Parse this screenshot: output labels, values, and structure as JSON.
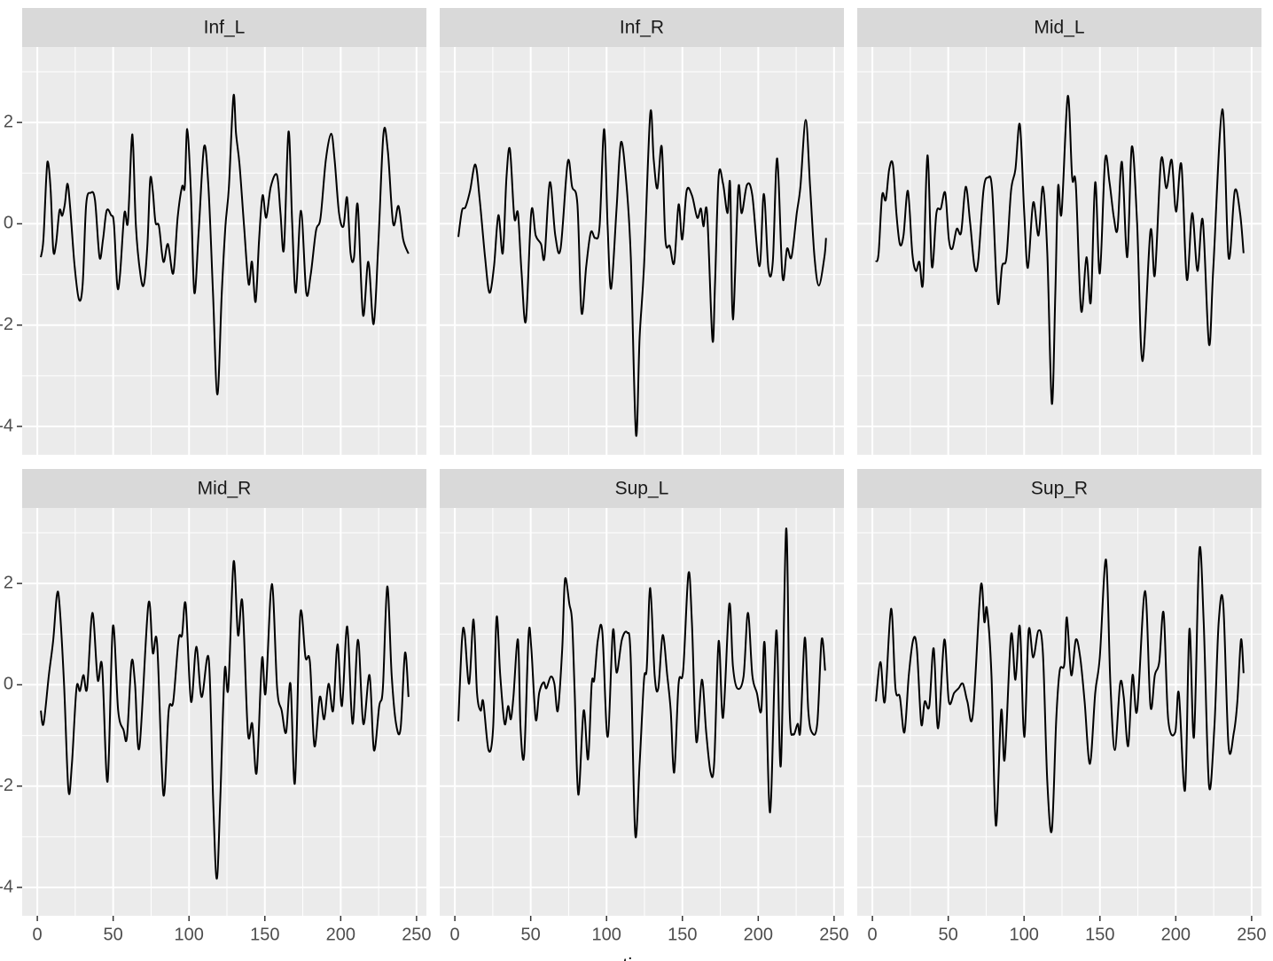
{
  "x_axis_title": "time",
  "chart_data": [
    {
      "type": "line",
      "title": "Inf_L",
      "color": "#000000",
      "grid": true,
      "xlim": [
        -10,
        256.5
      ],
      "ylim": [
        -4.56,
        3.49
      ],
      "xticks": [
        0,
        50,
        100,
        150,
        200,
        250
      ],
      "yticks": [
        -4,
        -2,
        0,
        2
      ],
      "x": [
        2.3,
        4,
        5.9,
        7,
        8.8,
        10.5,
        12.3,
        14.6,
        16.4,
        18.1,
        19.9,
        21.7,
        24.6,
        27.5,
        29.9,
        32.2,
        35.1,
        38,
        41,
        43.3,
        45.7,
        48.6,
        50.5,
        52.7,
        54.5,
        57.4,
        59.7,
        62.1,
        63.2,
        65,
        68,
        70.3,
        72.6,
        74.4,
        76.1,
        77.9,
        80.2,
        83.1,
        86.1,
        89.6,
        92.5,
        95.4,
        97.2,
        98.8,
        101.2,
        103.5,
        106.4,
        109.9,
        112.8,
        115.8,
        118.7,
        121.6,
        124,
        126.3,
        129.3,
        131,
        133.3,
        136.3,
        139.3,
        141.5,
        143.9,
        146.2,
        148.5,
        150.9,
        153.9,
        158,
        160.3,
        162.6,
        165.6,
        168,
        170.4,
        173.8,
        177.3,
        180.2,
        183.7,
        186.7,
        190.2,
        193.7,
        196,
        198.9,
        201.8,
        204.2,
        206.5,
        208.8,
        211.2,
        214.7,
        218.2,
        221.7,
        224.8,
        228.2,
        231.1,
        234.6,
        238.1,
        241.2,
        244.7
      ],
      "values": [
        -0.66,
        -0.31,
        0.91,
        1.22,
        0.65,
        -0.52,
        -0.4,
        0.26,
        0.16,
        0.38,
        0.79,
        0.3,
        -0.84,
        -1.5,
        -1.19,
        0.38,
        0.61,
        0.47,
        -0.66,
        -0.31,
        0.26,
        0.17,
        0,
        -1.22,
        -1.01,
        0.21,
        0.03,
        1.61,
        1.52,
        -0.05,
        -1.01,
        -1.19,
        -0.4,
        0.87,
        0.65,
        0.03,
        -0.05,
        -0.75,
        -0.4,
        -0.98,
        0.12,
        0.73,
        0.73,
        1.87,
        0.65,
        -1.36,
        -0.14,
        1.52,
        0.73,
        -1.36,
        -3.37,
        -1.36,
        -0.05,
        0.73,
        2.52,
        1.78,
        1.17,
        -0.05,
        -1.19,
        -0.75,
        -1.54,
        -0.31,
        0.56,
        0.12,
        0.73,
        0.96,
        0.21,
        -0.49,
        1.82,
        0.03,
        -1.36,
        0.26,
        -1.36,
        -1.01,
        -0.14,
        0.12,
        1.26,
        1.78,
        1.26,
        0.21,
        -0.05,
        0.52,
        -0.58,
        -0.66,
        0.38,
        -1.8,
        -0.75,
        -1.98,
        -0.4,
        1.78,
        1.43,
        0,
        0.35,
        -0.31,
        -0.59
      ]
    },
    {
      "type": "line",
      "title": "Inf_R",
      "color": "#000000",
      "grid": true,
      "xlim": [
        -10,
        256.5
      ],
      "ylim": [
        -4.56,
        3.49
      ],
      "xticks": [
        0,
        50,
        100,
        150,
        200,
        250
      ],
      "yticks": [
        -4,
        -2,
        0,
        2
      ],
      "x": [
        2.3,
        4.7,
        7,
        10,
        13.5,
        16.4,
        19.9,
        22.8,
        25.8,
        28.7,
        31.6,
        34,
        36.3,
        39.2,
        41.6,
        43.9,
        46.8,
        50.4,
        53.3,
        56.8,
        59.1,
        62.6,
        66.2,
        69.7,
        74.4,
        77.3,
        80.8,
        83.5,
        86.6,
        89.6,
        92.5,
        95.4,
        98.4,
        100.7,
        103,
        106.6,
        109.5,
        113,
        116,
        119.4,
        121.8,
        124.7,
        128.8,
        131.1,
        133.5,
        136.4,
        138.8,
        141.7,
        144.6,
        147.5,
        149.9,
        152.8,
        156.3,
        159.8,
        162.2,
        163.9,
        166.3,
        169.8,
        171.5,
        173.9,
        176.8,
        179.7,
        181.5,
        183.3,
        186.8,
        189.1,
        192.6,
        196.1,
        200.8,
        203.7,
        206.7,
        209.6,
        212.5,
        216,
        219,
        221.9,
        225.4,
        227.8,
        231.3,
        234.2,
        237.1,
        240,
        243.6,
        244.7
      ],
      "values": [
        -0.26,
        0.26,
        0.33,
        0.65,
        1.17,
        0.47,
        -0.66,
        -1.36,
        -0.84,
        0.17,
        -0.58,
        0.91,
        1.47,
        0.12,
        0.21,
        -0.93,
        -1.92,
        0.24,
        -0.23,
        -0.4,
        -0.66,
        0.82,
        -0.23,
        -0.49,
        1.22,
        0.73,
        0.38,
        -1.75,
        -0.84,
        -0.17,
        -0.28,
        -0.05,
        1.87,
        -0.05,
        -1.28,
        0.3,
        1.61,
        0.82,
        -0.66,
        -4.16,
        -2.24,
        -0.84,
        2.17,
        1.26,
        0.7,
        1.52,
        -0.31,
        -0.44,
        -0.77,
        0.38,
        -0.31,
        0.65,
        0.56,
        0.12,
        0.3,
        -0.05,
        0.21,
        -2.29,
        -1.19,
        0.94,
        0.79,
        0.21,
        0.77,
        -1.89,
        0.68,
        0.21,
        0.77,
        0.56,
        -0.84,
        0.59,
        -0.89,
        -0.75,
        1.29,
        -1.05,
        -0.49,
        -0.66,
        0.21,
        0.73,
        2.05,
        0.73,
        -0.66,
        -1.22,
        -0.66,
        -0.28
      ]
    },
    {
      "type": "line",
      "title": "Mid_L",
      "color": "#000000",
      "grid": true,
      "xlim": [
        -10,
        256.5
      ],
      "ylim": [
        -4.56,
        3.49
      ],
      "xticks": [
        0,
        50,
        100,
        150,
        200,
        250
      ],
      "yticks": [
        -4,
        -2,
        0,
        2
      ],
      "x": [
        2.3,
        4.1,
        6.4,
        8.8,
        11.1,
        13.5,
        15.8,
        18.1,
        20.5,
        23.4,
        26.3,
        28.7,
        31,
        33.4,
        36.3,
        39.2,
        42.2,
        45.1,
        48,
        50.4,
        52.7,
        55.6,
        58.5,
        61.5,
        64.4,
        67.3,
        69.7,
        73.2,
        76.1,
        79,
        82.6,
        85.5,
        88.4,
        91.4,
        94.3,
        97.2,
        100.1,
        102.5,
        106,
        109.5,
        112.4,
        115.3,
        118.3,
        120.6,
        122.4,
        124.7,
        128.8,
        131.7,
        134.1,
        137.6,
        141.1,
        144,
        146.9,
        149.9,
        153.4,
        156.3,
        159.2,
        161.6,
        164.5,
        168,
        171,
        174.5,
        178,
        183.3,
        186.2,
        190.3,
        193.8,
        197.3,
        200.2,
        203.7,
        207.3,
        210.8,
        214.3,
        217.8,
        221.9,
        224.8,
        230.7,
        234.8,
        238.9,
        242.4,
        244.7
      ],
      "values": [
        -0.75,
        -0.58,
        0.56,
        0.47,
        1.08,
        1.17,
        0.21,
        -0.4,
        -0.23,
        0.65,
        -0.58,
        -0.93,
        -0.75,
        -1.15,
        1.35,
        -0.84,
        0.21,
        0.3,
        0.61,
        -0.31,
        -0.49,
        -0.1,
        -0.17,
        0.73,
        0.03,
        -0.84,
        -0.75,
        0.65,
        0.91,
        0.65,
        -1.54,
        -0.84,
        -0.66,
        0.65,
        1.08,
        1.96,
        0.21,
        -0.87,
        0.42,
        -0.23,
        0.73,
        -0.58,
        -3.55,
        -1.36,
        0.73,
        0.21,
        2.52,
        0.91,
        0.77,
        -1.71,
        -0.66,
        -1.54,
        0.82,
        -0.98,
        1.26,
        0.82,
        0.12,
        -0.1,
        1.22,
        -0.66,
        1.52,
        0.03,
        -2.71,
        -0.14,
        -1.01,
        1.26,
        0.7,
        1.26,
        0.24,
        1.17,
        -1.1,
        0.21,
        -0.93,
        0.07,
        -2.38,
        -0.84,
        2.26,
        -0.66,
        0.65,
        0.21,
        -0.58
      ]
    },
    {
      "type": "line",
      "title": "Mid_R",
      "color": "#000000",
      "grid": true,
      "xlim": [
        -10,
        256.5
      ],
      "ylim": [
        -4.56,
        3.49
      ],
      "xticks": [
        0,
        50,
        100,
        150,
        200,
        250
      ],
      "yticks": [
        -4,
        -2,
        0,
        2
      ],
      "x": [
        2.3,
        4.1,
        7.6,
        10.5,
        12.9,
        14.6,
        17.6,
        20.5,
        22.8,
        25.8,
        28.1,
        30.4,
        32.8,
        36.3,
        39.8,
        42.7,
        46.3,
        49.8,
        53.3,
        56.8,
        59.1,
        62.1,
        64.4,
        67.3,
        73.2,
        76.1,
        79,
        83.1,
        86.6,
        89.6,
        93.1,
        95.4,
        97.8,
        101.3,
        104.8,
        108.3,
        113,
        115.9,
        118.3,
        120.6,
        123.5,
        125.9,
        129.4,
        132.3,
        135.2,
        138.8,
        141.7,
        144.6,
        148.1,
        150.5,
        154.6,
        158.1,
        161.1,
        164,
        166.9,
        169.8,
        173.3,
        176.8,
        179.7,
        182.7,
        186.2,
        189.1,
        192,
        195,
        197.9,
        200.8,
        204.3,
        207.8,
        211.4,
        214.9,
        219,
        221.9,
        225.4,
        227.8,
        230.7,
        233.6,
        236.5,
        239.5,
        242.4,
        244.7
      ],
      "values": [
        -0.51,
        -0.77,
        0.19,
        0.89,
        1.77,
        1.59,
        0.02,
        -2.08,
        -1.56,
        -0.07,
        -0.12,
        0.19,
        -0.07,
        1.42,
        0.1,
        0.37,
        -1.91,
        1.15,
        -0.51,
        -0.89,
        -1.03,
        0.45,
        0.02,
        -1.24,
        1.59,
        0.63,
        0.8,
        -2.17,
        -0.51,
        -0.33,
        0.89,
        0.98,
        1.59,
        -0.33,
        0.75,
        -0.24,
        0.51,
        -2.26,
        -3.83,
        -2.26,
        0.28,
        -0.07,
        2.43,
        0.98,
        1.63,
        -0.94,
        -0.77,
        -1.73,
        0.51,
        -0.16,
        1.99,
        -0.07,
        -0.51,
        -0.94,
        0.02,
        -1.94,
        1.38,
        0.54,
        0.45,
        -1.21,
        -0.24,
        -0.68,
        0.02,
        -0.51,
        0.8,
        -0.42,
        1.15,
        -0.77,
        0.89,
        -0.77,
        0.19,
        -1.29,
        -0.42,
        -0.07,
        1.94,
        0.19,
        -0.77,
        -0.86,
        0.63,
        -0.24
      ]
    },
    {
      "type": "line",
      "title": "Sup_L",
      "color": "#000000",
      "grid": true,
      "xlim": [
        -10,
        256.5
      ],
      "ylim": [
        -4.56,
        3.49
      ],
      "xticks": [
        0,
        50,
        100,
        150,
        200,
        250
      ],
      "yticks": [
        -4,
        -2,
        0,
        2
      ],
      "x": [
        2.3,
        4.7,
        6.4,
        9.4,
        12.3,
        14.6,
        17,
        18.7,
        22.2,
        25.2,
        27.5,
        29.9,
        32.8,
        35.1,
        36.9,
        38.6,
        41.6,
        43.3,
        45.7,
        48.6,
        50.4,
        53.3,
        55.6,
        58.5,
        60.3,
        63.2,
        65.6,
        67.9,
        70.8,
        72.6,
        75.5,
        77.3,
        79,
        81.4,
        84.9,
        87.8,
        90.2,
        91.9,
        94.3,
        97.2,
        100.7,
        104.2,
        106.6,
        110.1,
        113.6,
        115.9,
        118.9,
        121.8,
        124.7,
        126.5,
        128.8,
        131.7,
        134.1,
        137,
        140,
        142.3,
        144.6,
        147.5,
        150.5,
        154,
        156.3,
        159.2,
        162.8,
        165.7,
        168.6,
        171,
        173.9,
        176.8,
        180.9,
        183.3,
        186.2,
        190.3,
        193.2,
        196.1,
        199.1,
        202,
        204.3,
        207.8,
        211.9,
        214.9,
        218.4,
        220.7,
        223.1,
        226,
        227.8,
        230.7,
        233,
        235.4,
        238.9,
        241.8,
        244.1
      ],
      "values": [
        -0.72,
        0.89,
        1.03,
        0.02,
        1.29,
        -0.16,
        -0.51,
        -0.33,
        -1.29,
        -0.86,
        1.33,
        0.19,
        -0.77,
        -0.42,
        -0.68,
        -0.24,
        0.89,
        -0.86,
        -1.38,
        0.98,
        0.72,
        -0.68,
        -0.16,
        0.05,
        -0.07,
        0.16,
        0.02,
        -0.51,
        0.72,
        2.08,
        1.59,
        1.24,
        -0.16,
        -2.17,
        -0.51,
        -1.47,
        0.02,
        0.1,
        0.89,
        1.05,
        -1.03,
        1.07,
        0.24,
        0.89,
        1.03,
        0.54,
        -2.95,
        -1.56,
        0.1,
        0.33,
        1.91,
        0.19,
        -0.07,
        0.98,
        0.19,
        -0.51,
        -1.73,
        0.02,
        0.28,
        2.2,
        1.21,
        -1.12,
        0.1,
        -0.94,
        -1.73,
        -1.52,
        0.86,
        -0.65,
        1.59,
        0.37,
        -0.07,
        0.16,
        1.42,
        0.19,
        -0.16,
        -0.51,
        0.8,
        -2.52,
        1.07,
        -1.59,
        3.08,
        -0.51,
        -0.98,
        -0.77,
        -0.89,
        0.93,
        -0.51,
        -0.94,
        -0.77,
        0.89,
        0.28
      ]
    },
    {
      "type": "line",
      "title": "Sup_R",
      "color": "#000000",
      "grid": true,
      "xlim": [
        -10,
        256.5
      ],
      "ylim": [
        -4.56,
        3.49
      ],
      "xticks": [
        0,
        50,
        100,
        150,
        200,
        250
      ],
      "yticks": [
        -4,
        -2,
        0,
        2
      ],
      "x": [
        2.3,
        5.3,
        8.2,
        12.3,
        15.2,
        18.1,
        21.1,
        24,
        26.9,
        29.3,
        32.2,
        34.5,
        37.5,
        40.4,
        43.3,
        47.4,
        50.4,
        53.9,
        56.8,
        59.7,
        62.6,
        66.2,
        71.4,
        73.8,
        75.5,
        78.5,
        81.4,
        84.9,
        87.2,
        91.4,
        94.3,
        97.2,
        100.1,
        103,
        106,
        109.5,
        112.4,
        115.3,
        118.3,
        121.2,
        123.5,
        126.5,
        128.2,
        131.1,
        134.1,
        137,
        139.9,
        143.4,
        146.9,
        149.9,
        154,
        156.9,
        159.8,
        163.3,
        165.7,
        168.6,
        171.5,
        174.5,
        179.7,
        183.3,
        186.2,
        189.1,
        192,
        195,
        199.6,
        202,
        206.1,
        209,
        212,
        215.5,
        218.4,
        221.9,
        225.4,
        228.3,
        231.3,
        234.8,
        238.3,
        240.6,
        243,
        244.7
      ],
      "values": [
        -0.33,
        0.45,
        -0.33,
        1.5,
        -0.07,
        -0.24,
        -0.94,
        0.19,
        0.89,
        0.72,
        -0.77,
        -0.33,
        -0.42,
        0.72,
        -0.86,
        0.89,
        -0.33,
        -0.16,
        -0.07,
        0.02,
        -0.33,
        -0.59,
        1.94,
        1.24,
        1.5,
        0.19,
        -2.78,
        -0.51,
        -1.47,
        0.98,
        0.1,
        1.15,
        -1.03,
        1.07,
        0.54,
        1.07,
        0.63,
        -1.91,
        -2.87,
        -0.68,
        0.28,
        0.4,
        1.33,
        0.19,
        0.89,
        0.54,
        -0.33,
        -1.56,
        -0.16,
        0.54,
        2.47,
        0.02,
        -1.29,
        0.02,
        -0.24,
        -1.21,
        0.19,
        -0.51,
        1.85,
        -0.42,
        0.19,
        0.45,
        1.42,
        -0.68,
        -0.94,
        -0.16,
        -2.08,
        1.1,
        -1.03,
        2.64,
        1.24,
        -1.99,
        -0.86,
        1.24,
        1.59,
        -1.21,
        -0.94,
        -0.33,
        0.89,
        0.23
      ]
    }
  ]
}
